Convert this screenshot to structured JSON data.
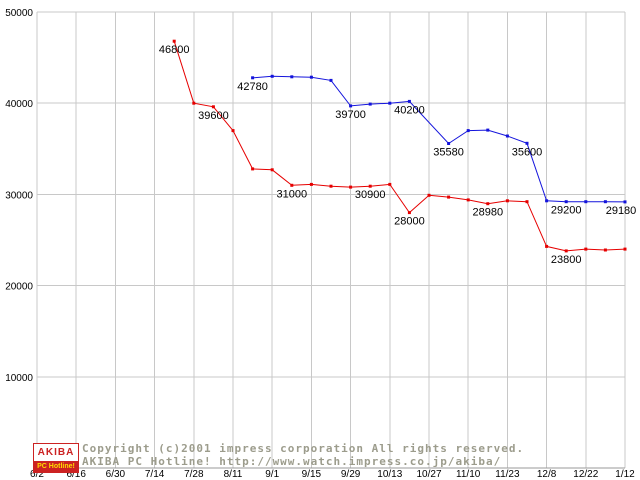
{
  "page": {
    "background": "#ffffff",
    "grid_color": "#c8c8c8",
    "axis_color": "#999999",
    "label_color": "#000000"
  },
  "chart_data": {
    "type": "line",
    "title": "",
    "xlabel": "",
    "ylabel": "",
    "ylim": [
      0,
      50000
    ],
    "grid": true,
    "legend": "none",
    "y_ticks": [
      0,
      10000,
      20000,
      30000,
      40000,
      50000
    ],
    "y_tick_labels": [
      "0",
      "10000",
      "20000",
      "30000",
      "40000",
      "50000"
    ],
    "x_tick_labels": [
      "6/2",
      "6/16",
      "6/30",
      "7/14",
      "7/28",
      "8/11",
      "9/1",
      "9/15",
      "9/29",
      "10/13",
      "10/27",
      "11/10",
      "11/23",
      "12/8",
      "12/22",
      "1/12"
    ],
    "series": [
      {
        "name": "red-price-series",
        "color": "#e60000",
        "points": [
          {
            "t": 3.5,
            "v": 46800,
            "label": "46800"
          },
          {
            "t": 4.0,
            "v": 40000
          },
          {
            "t": 4.5,
            "v": 39600,
            "label": "39600"
          },
          {
            "t": 5.0,
            "v": 37000
          },
          {
            "t": 5.5,
            "v": 32800
          },
          {
            "t": 6.0,
            "v": 32700
          },
          {
            "t": 6.5,
            "v": 31000,
            "label": "31000"
          },
          {
            "t": 7.0,
            "v": 31100
          },
          {
            "t": 7.5,
            "v": 30900
          },
          {
            "t": 8.0,
            "v": 30800
          },
          {
            "t": 8.5,
            "v": 30900,
            "label": "30900"
          },
          {
            "t": 9.0,
            "v": 31100
          },
          {
            "t": 9.5,
            "v": 28000,
            "label": "28000"
          },
          {
            "t": 10.0,
            "v": 29900
          },
          {
            "t": 10.5,
            "v": 29700
          },
          {
            "t": 11.0,
            "v": 29400
          },
          {
            "t": 11.5,
            "v": 28980,
            "label": "28980"
          },
          {
            "t": 12.0,
            "v": 29300
          },
          {
            "t": 12.5,
            "v": 29200
          },
          {
            "t": 13.0,
            "v": 24300
          },
          {
            "t": 13.5,
            "v": 23800,
            "label": "23800"
          },
          {
            "t": 14.0,
            "v": 24000
          },
          {
            "t": 14.5,
            "v": 23900
          },
          {
            "t": 15.0,
            "v": 24000
          }
        ]
      },
      {
        "name": "blue-price-series",
        "color": "#1414dc",
        "points": [
          {
            "t": 5.5,
            "v": 42780,
            "label": "42780"
          },
          {
            "t": 6.0,
            "v": 42950
          },
          {
            "t": 6.5,
            "v": 42900
          },
          {
            "t": 7.0,
            "v": 42850
          },
          {
            "t": 7.5,
            "v": 42500
          },
          {
            "t": 8.0,
            "v": 39700,
            "label": "39700"
          },
          {
            "t": 8.5,
            "v": 39900
          },
          {
            "t": 9.0,
            "v": 40000
          },
          {
            "t": 9.5,
            "v": 40200,
            "label": "40200"
          },
          {
            "t": 10.5,
            "v": 35580,
            "label": "35580"
          },
          {
            "t": 11.0,
            "v": 37000
          },
          {
            "t": 11.5,
            "v": 37050
          },
          {
            "t": 12.0,
            "v": 36400
          },
          {
            "t": 12.5,
            "v": 35600,
            "label": "35600"
          },
          {
            "t": 13.0,
            "v": 29300
          },
          {
            "t": 13.5,
            "v": 29200,
            "label": "29200"
          },
          {
            "t": 14.0,
            "v": 29200
          },
          {
            "t": 14.5,
            "v": 29200
          },
          {
            "t": 15.0,
            "v": 29180,
            "label": "29180"
          }
        ]
      }
    ]
  },
  "footer": {
    "logo": {
      "line1": "AKIBA",
      "line2": "PC Hotline!"
    },
    "copyright_line1": "Copyright (c)2001 impress corporation All rights reserved.",
    "copyright_line2": "AKIBA PC Hotline!  http://www.watch.impress.co.jp/akiba/",
    "text_color": "#9c9c8c"
  }
}
